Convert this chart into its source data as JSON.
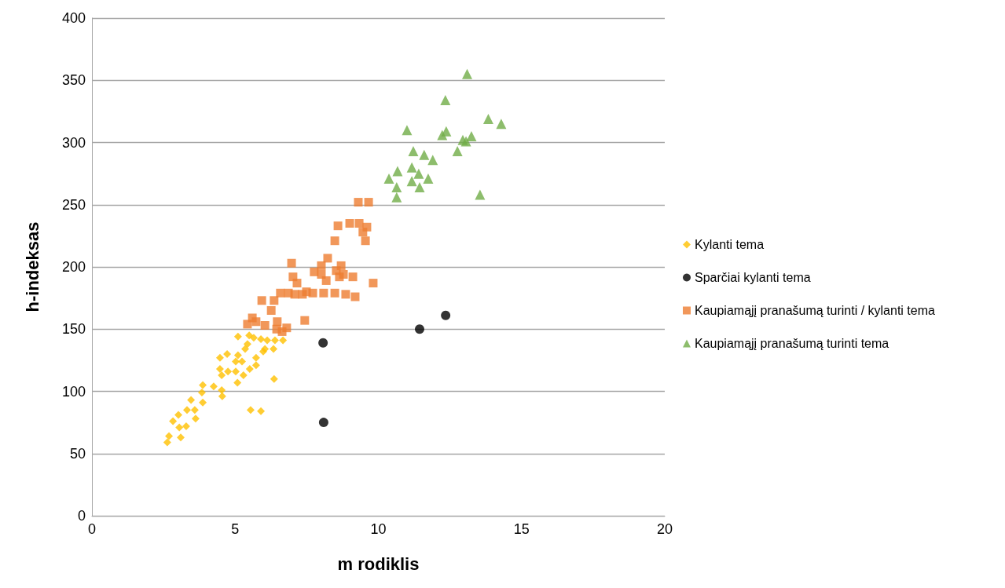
{
  "chart_data": {
    "type": "scatter",
    "xlabel": "m rodiklis",
    "ylabel": "h-indeksas",
    "xlim": [
      0,
      20
    ],
    "xticks": [
      0,
      5,
      10,
      15,
      20
    ],
    "ylim": [
      0,
      400
    ],
    "yticks": [
      0,
      50,
      100,
      150,
      200,
      250,
      300,
      350,
      400
    ],
    "grid": "y",
    "legend": "right",
    "series": [
      {
        "name": "Kylanti tema",
        "color": "#ffc000",
        "marker": "diamond",
        "x": [
          5.1,
          5.49,
          5.65,
          5.9,
          6.12,
          6.39,
          6.67,
          6.34,
          6.04,
          5.43,
          5.35,
          5.1,
          4.47,
          4.72,
          5.02,
          5.24,
          5.73,
          5.98,
          5.73,
          5.51,
          4.47,
          4.75,
          5.02,
          5.29,
          4.53,
          5.08,
          6.36,
          3.87,
          4.25,
          4.53,
          4.55,
          3.84,
          3.46,
          3.87,
          3.59,
          3.32,
          3.02,
          3.62,
          2.83,
          3.29,
          3.05,
          2.69,
          3.1,
          2.63,
          5.54,
          5.9
        ],
        "values": [
          144,
          145,
          143,
          142,
          141,
          141,
          141,
          134,
          134,
          138,
          134,
          129,
          127,
          130,
          124,
          124,
          127,
          132,
          121,
          118,
          118,
          116,
          116,
          113,
          113,
          107,
          110,
          105,
          104,
          101,
          96,
          99,
          93,
          91,
          85,
          85,
          81,
          78,
          76,
          72,
          71,
          64,
          63,
          59,
          85,
          84
        ]
      },
      {
        "name": "Sparčiai kylanti tema",
        "color": "#000000",
        "marker": "circle",
        "x": [
          8.09,
          8.07,
          11.44,
          12.35
        ],
        "values": [
          75,
          139,
          150,
          161
        ]
      },
      {
        "name": "Kaupiamąjį pranašumą turinti / kylanti tema",
        "color": "#ed7d31",
        "marker": "square",
        "x": [
          9.3,
          9.66,
          9.0,
          9.33,
          9.6,
          9.46,
          9.55,
          8.59,
          8.48,
          8.23,
          8.01,
          8.7,
          6.97,
          7.76,
          8.01,
          8.53,
          8.78,
          8.64,
          9.11,
          8.18,
          7.02,
          7.16,
          9.82,
          6.58,
          6.86,
          7.08,
          7.35,
          7.49,
          7.71,
          8.09,
          8.48,
          8.86,
          9.19,
          5.93,
          6.36,
          6.26,
          7.43,
          5.6,
          5.73,
          5.43,
          6.04,
          6.47,
          6.8,
          6.45,
          6.64
        ],
        "values": [
          252,
          252,
          235,
          235,
          232,
          228,
          221,
          233,
          221,
          207,
          201,
          201,
          203,
          196,
          194,
          197,
          194,
          192,
          192,
          189,
          192,
          187,
          187,
          179,
          179,
          178,
          178,
          180,
          179,
          179,
          179,
          178,
          176,
          173,
          173,
          165,
          157,
          159,
          156,
          154,
          153,
          156,
          151,
          150,
          148
        ]
      },
      {
        "name": "Kaupiamąjį pranašumą turinti tema",
        "color": "#70ad47",
        "marker": "triangle",
        "x": [
          12.34,
          13.1,
          11.0,
          12.37,
          11.22,
          11.6,
          11.9,
          10.37,
          10.67,
          11.17,
          10.64,
          11.17,
          11.41,
          11.74,
          11.44,
          10.64,
          13.55,
          13.84,
          14.29,
          13.25,
          12.95,
          12.76,
          12.23,
          13.06
        ],
        "values": [
          334,
          355,
          310,
          309,
          293,
          290,
          286,
          271,
          277,
          280,
          264,
          269,
          275,
          271,
          264,
          256,
          258,
          319,
          315,
          305,
          302,
          293,
          306,
          301
        ]
      }
    ]
  }
}
